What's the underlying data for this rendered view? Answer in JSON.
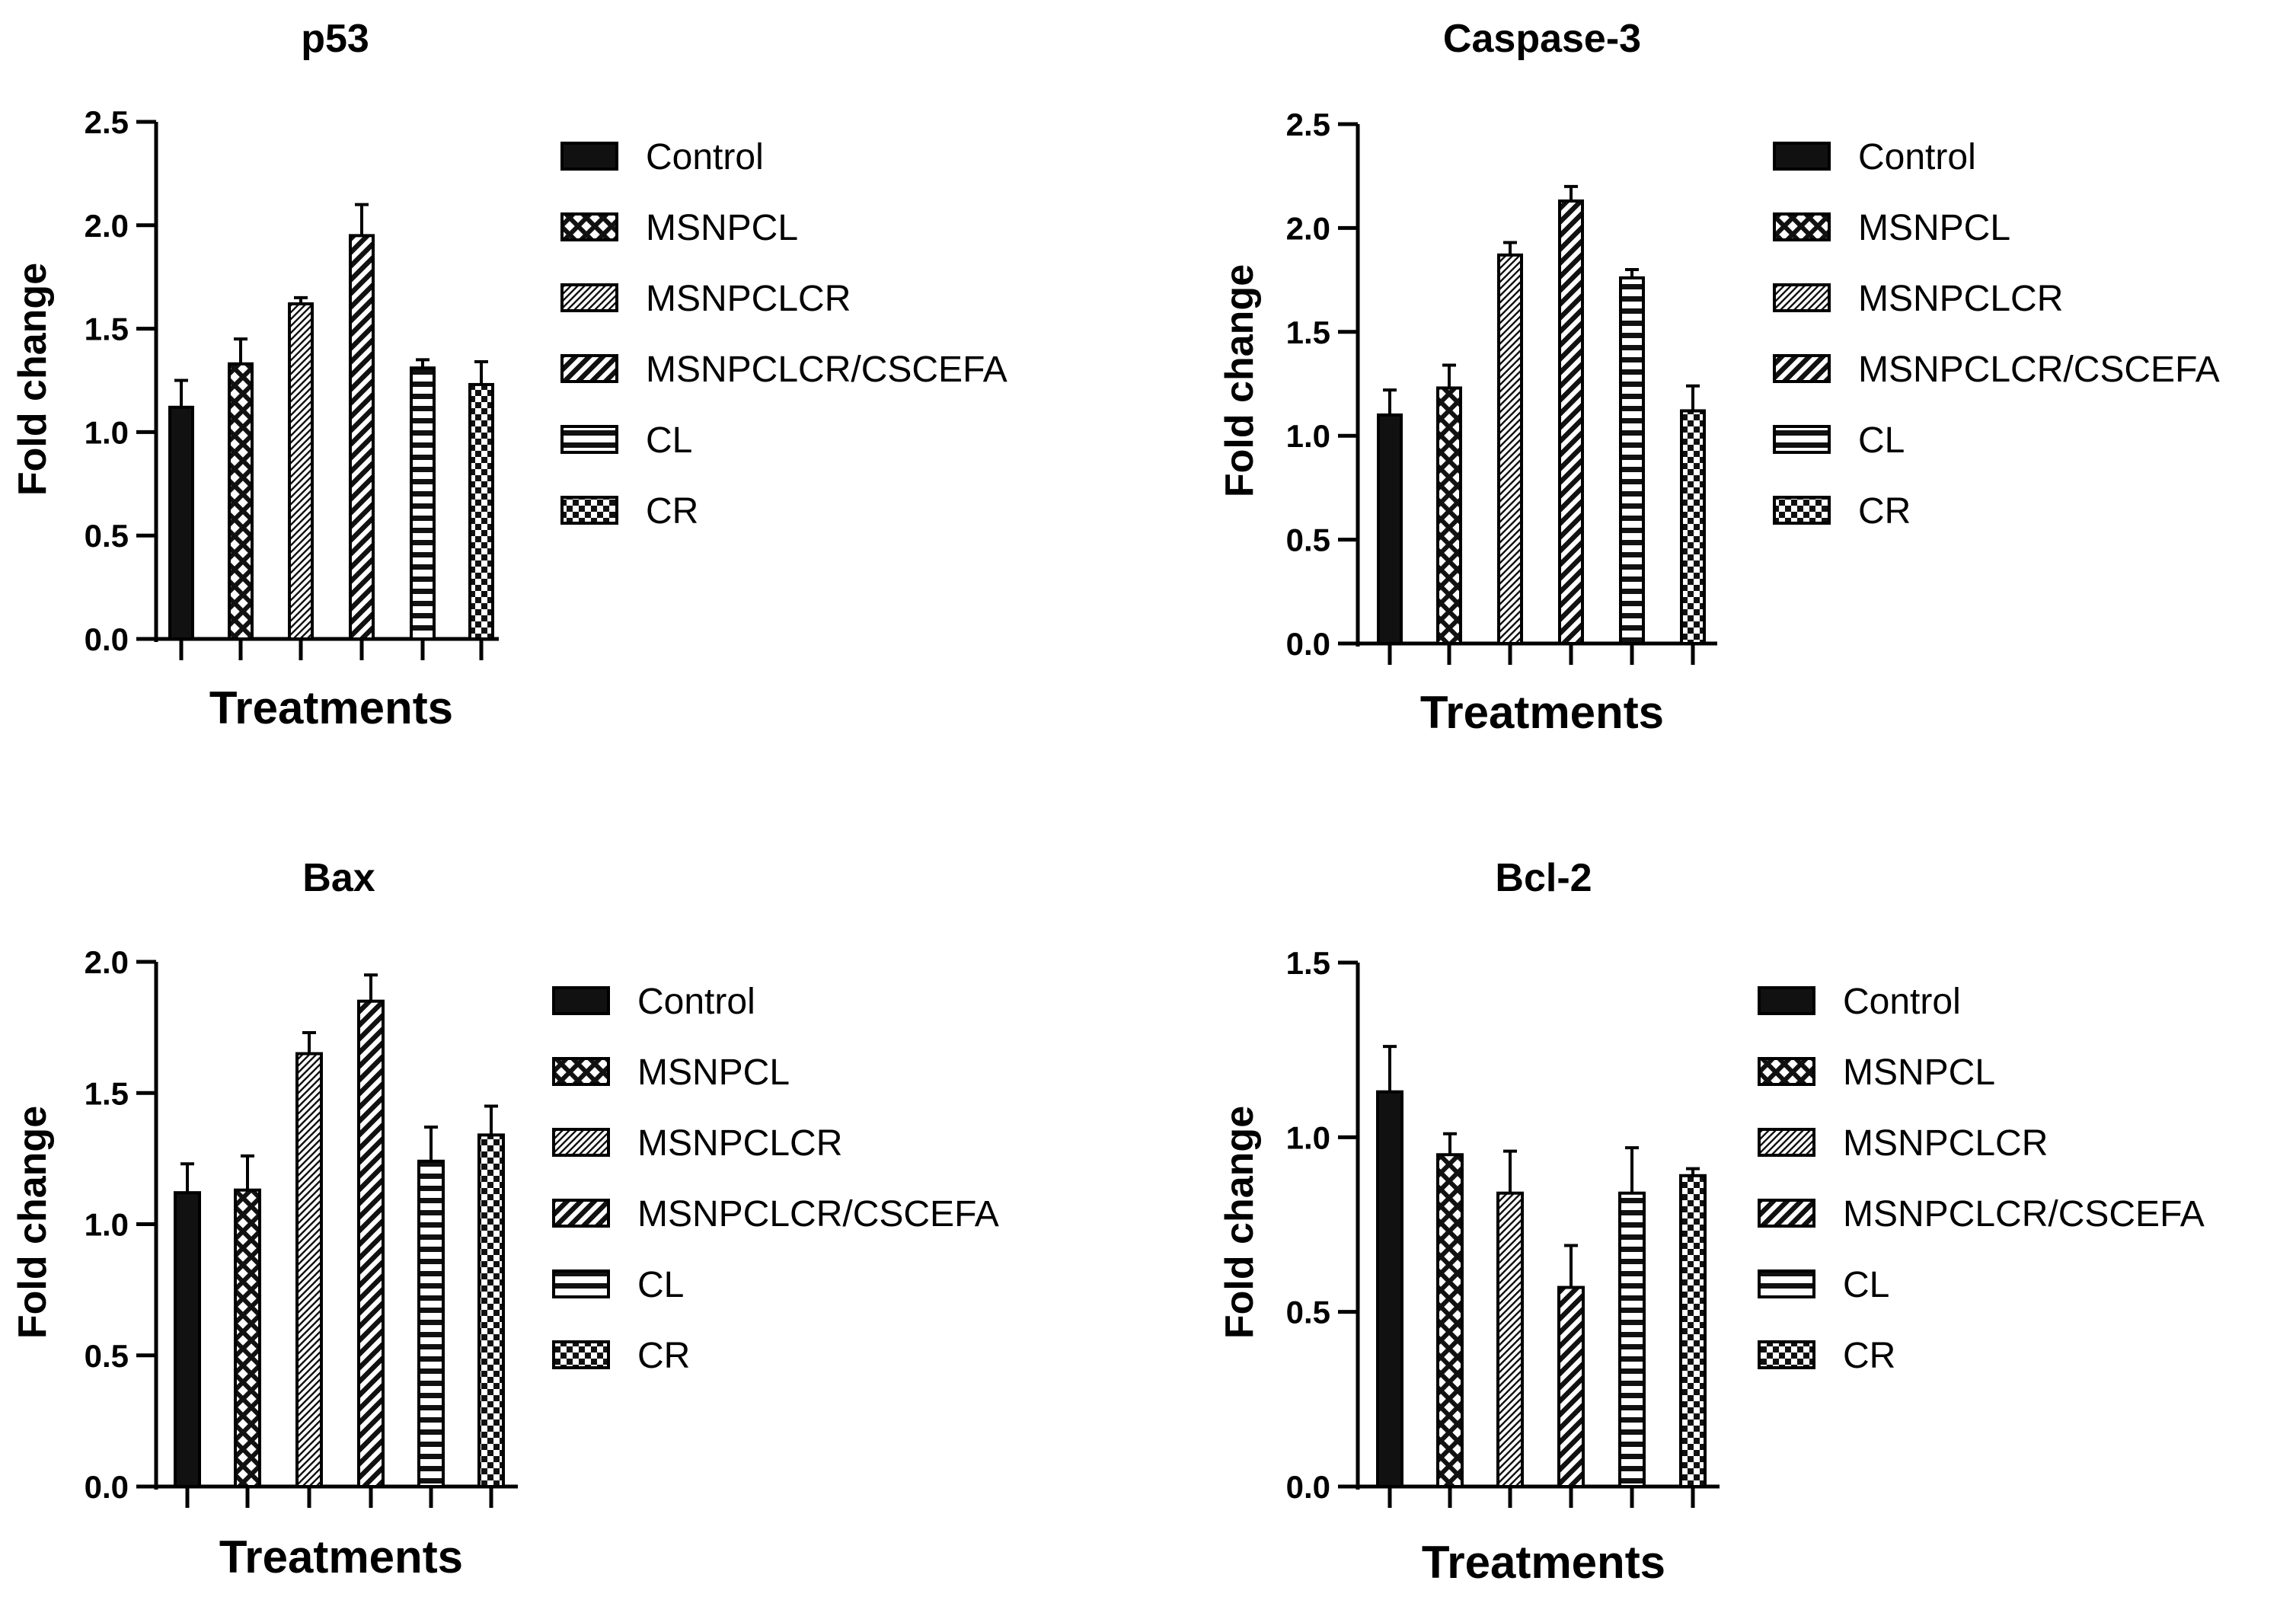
{
  "figure": {
    "series_names": [
      "Control",
      "MSNPCL",
      "MSNPCLCR",
      "MSNPCLCR/CSCEFA",
      "CL",
      "CR"
    ]
  },
  "chart_data": [
    {
      "type": "bar",
      "title": "p53",
      "xlabel": "Treatments",
      "ylabel": "Fold change",
      "categories": [
        "Control",
        "MSNPCL",
        "MSNPCLCR",
        "MSNPCLCR/CSCEFA",
        "CL",
        "CR"
      ],
      "values": [
        1.12,
        1.33,
        1.62,
        1.95,
        1.31,
        1.23
      ],
      "errors": [
        0.13,
        0.12,
        0.03,
        0.15,
        0.04,
        0.11
      ],
      "ylim": [
        0,
        2.5
      ],
      "yticks": [
        "0.0",
        "0.5",
        "1.0",
        "1.5",
        "2.0",
        "2.5"
      ],
      "legend": [
        "Control",
        "MSNPCL",
        "MSNPCLCR",
        "MSNPCLCR/CSCEFA",
        "CL",
        "CR"
      ]
    },
    {
      "type": "bar",
      "title": "Caspase-3",
      "xlabel": "Treatments",
      "ylabel": "Fold change",
      "categories": [
        "Control",
        "MSNPCL",
        "MSNPCLCR",
        "MSNPCLCR/CSCEFA",
        "CL",
        "CR"
      ],
      "values": [
        1.1,
        1.23,
        1.87,
        2.13,
        1.76,
        1.12
      ],
      "errors": [
        0.12,
        0.11,
        0.06,
        0.07,
        0.04,
        0.12
      ],
      "ylim": [
        0,
        2.5
      ],
      "yticks": [
        "0.0",
        "0.5",
        "1.0",
        "1.5",
        "2.0",
        "2.5"
      ],
      "legend": [
        "Control",
        "MSNPCL",
        "MSNPCLCR",
        "MSNPCLCR/CSCEFA",
        "CL",
        "CR"
      ]
    },
    {
      "type": "bar",
      "title": "Bax",
      "xlabel": "Treatments",
      "ylabel": "Fold change",
      "categories": [
        "Control",
        "MSNPCL",
        "MSNPCLCR",
        "MSNPCLCR/CSCEFA",
        "CL",
        "CR"
      ],
      "values": [
        1.12,
        1.13,
        1.65,
        1.85,
        1.24,
        1.34
      ],
      "errors": [
        0.11,
        0.13,
        0.08,
        0.1,
        0.13,
        0.11
      ],
      "ylim": [
        0,
        2.0
      ],
      "yticks": [
        "0.0",
        "0.5",
        "1.0",
        "1.5",
        "2.0"
      ],
      "legend": [
        "Control",
        "MSNPCL",
        "MSNPCLCR",
        "MSNPCLCR/CSCEFA",
        "CL",
        "CR"
      ]
    },
    {
      "type": "bar",
      "title": "Bcl-2",
      "xlabel": "Treatments",
      "ylabel": "Fold change",
      "categories": [
        "Control",
        "MSNPCL",
        "MSNPCLCR",
        "MSNPCLCR/CSCEFA",
        "CL",
        "CR"
      ],
      "values": [
        1.13,
        0.95,
        0.84,
        0.57,
        0.84,
        0.89
      ],
      "errors": [
        0.13,
        0.06,
        0.12,
        0.12,
        0.13,
        0.02
      ],
      "ylim": [
        0,
        1.5
      ],
      "yticks": [
        "0.0",
        "0.5",
        "1.0",
        "1.5"
      ],
      "legend": [
        "Control",
        "MSNPCL",
        "MSNPCLCR",
        "MSNPCLCR/CSCEFA",
        "CL",
        "CR"
      ]
    }
  ]
}
